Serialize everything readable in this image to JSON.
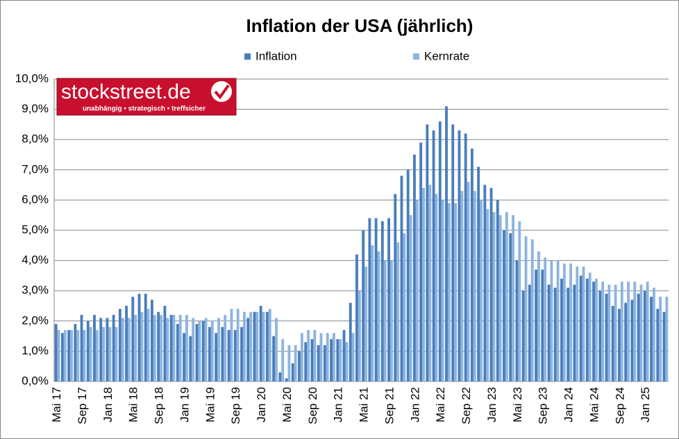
{
  "chart_data": {
    "type": "bar",
    "title": "Inflation der USA (jährlich)",
    "logo": {
      "name": "stockstreet.de",
      "tagline": "unabhängig • strategisch • treffsicher"
    },
    "categories": [
      "Mai 17",
      null,
      null,
      null,
      "Sep 17",
      null,
      null,
      null,
      "Jan 18",
      null,
      null,
      null,
      "Mai 18",
      null,
      null,
      null,
      "Sep 18",
      null,
      null,
      null,
      "Jan 19",
      null,
      null,
      null,
      "Mai 19",
      null,
      null,
      null,
      "Sep 19",
      null,
      null,
      null,
      "Jan 20",
      null,
      null,
      null,
      "Mai 20",
      null,
      null,
      null,
      "Sep 20",
      null,
      null,
      null,
      "Jan 21",
      null,
      null,
      null,
      "Mai 21",
      null,
      null,
      null,
      "Sep 21",
      null,
      null,
      null,
      "Jan 22",
      null,
      null,
      null,
      "Mai 22",
      null,
      null,
      null,
      "Sep 22",
      null,
      null,
      null,
      "Jan 23",
      null,
      null,
      null,
      "Mai 23",
      null,
      null,
      null,
      "Sep 23",
      null,
      null,
      null,
      "Jan 24",
      null,
      null,
      null,
      "Mai 24",
      null,
      null,
      null,
      "Sep 24",
      null,
      null,
      null,
      "Jan 25",
      null,
      null,
      null
    ],
    "series": [
      {
        "name": "Inflation",
        "color": "#4a7ebb",
        "values": [
          1.9,
          1.6,
          1.7,
          1.9,
          2.2,
          2.0,
          2.2,
          2.1,
          2.1,
          2.2,
          2.4,
          2.5,
          2.8,
          2.9,
          2.9,
          2.7,
          2.3,
          2.5,
          2.2,
          1.9,
          1.6,
          1.5,
          1.9,
          2.0,
          1.8,
          1.6,
          1.8,
          1.7,
          1.7,
          1.8,
          2.1,
          2.3,
          2.5,
          2.3,
          1.5,
          0.3,
          0.1,
          0.6,
          1.0,
          1.3,
          1.4,
          1.2,
          1.2,
          1.4,
          1.4,
          1.7,
          2.6,
          4.2,
          5.0,
          5.4,
          5.4,
          5.3,
          5.4,
          6.2,
          6.8,
          7.0,
          7.5,
          7.9,
          8.5,
          8.3,
          8.6,
          9.1,
          8.5,
          8.3,
          8.2,
          7.7,
          7.1,
          6.5,
          6.4,
          6.0,
          5.0,
          4.9,
          4.0,
          3.0,
          3.2,
          3.7,
          3.7,
          3.2,
          3.1,
          3.4,
          3.1,
          3.2,
          3.5,
          3.4,
          3.3,
          3.0,
          2.9,
          2.5,
          2.4,
          2.6,
          2.7,
          2.9,
          3.0,
          2.8,
          2.4,
          2.3
        ]
      },
      {
        "name": "Kernrate",
        "color": "#8db4e2",
        "values": [
          1.7,
          1.7,
          1.7,
          1.7,
          1.7,
          1.8,
          1.7,
          1.8,
          1.8,
          1.8,
          2.1,
          2.1,
          2.2,
          2.3,
          2.4,
          2.2,
          2.2,
          2.1,
          2.2,
          2.2,
          2.2,
          2.1,
          2.0,
          2.1,
          2.0,
          2.1,
          2.2,
          2.4,
          2.4,
          2.3,
          2.3,
          2.3,
          2.3,
          2.4,
          2.1,
          1.4,
          1.2,
          1.2,
          1.6,
          1.7,
          1.7,
          1.6,
          1.6,
          1.6,
          1.4,
          1.3,
          1.6,
          3.0,
          3.8,
          4.5,
          4.3,
          4.0,
          4.0,
          4.6,
          4.9,
          5.5,
          6.0,
          6.4,
          6.5,
          6.2,
          6.0,
          5.9,
          5.9,
          6.3,
          6.6,
          6.3,
          6.0,
          5.7,
          5.6,
          5.5,
          5.6,
          5.5,
          5.3,
          4.8,
          4.7,
          4.3,
          4.1,
          4.0,
          4.0,
          3.9,
          3.9,
          3.8,
          3.8,
          3.6,
          3.4,
          3.3,
          3.2,
          3.2,
          3.3,
          3.3,
          3.3,
          3.2,
          3.3,
          3.1,
          2.8,
          2.8
        ]
      }
    ],
    "ylim": [
      0,
      10
    ],
    "yticks": [
      {
        "value": 0,
        "label": "0,0%"
      },
      {
        "value": 1,
        "label": "1,0%"
      },
      {
        "value": 2,
        "label": "2,0%"
      },
      {
        "value": 3,
        "label": "3,0%"
      },
      {
        "value": 4,
        "label": "4,0%"
      },
      {
        "value": 5,
        "label": "5,0%"
      },
      {
        "value": 6,
        "label": "6,0%"
      },
      {
        "value": 7,
        "label": "7,0%"
      },
      {
        "value": 8,
        "label": "8,0%"
      },
      {
        "value": 9,
        "label": "9,0%"
      },
      {
        "value": 10,
        "label": "10,0%"
      }
    ],
    "grid": true
  }
}
